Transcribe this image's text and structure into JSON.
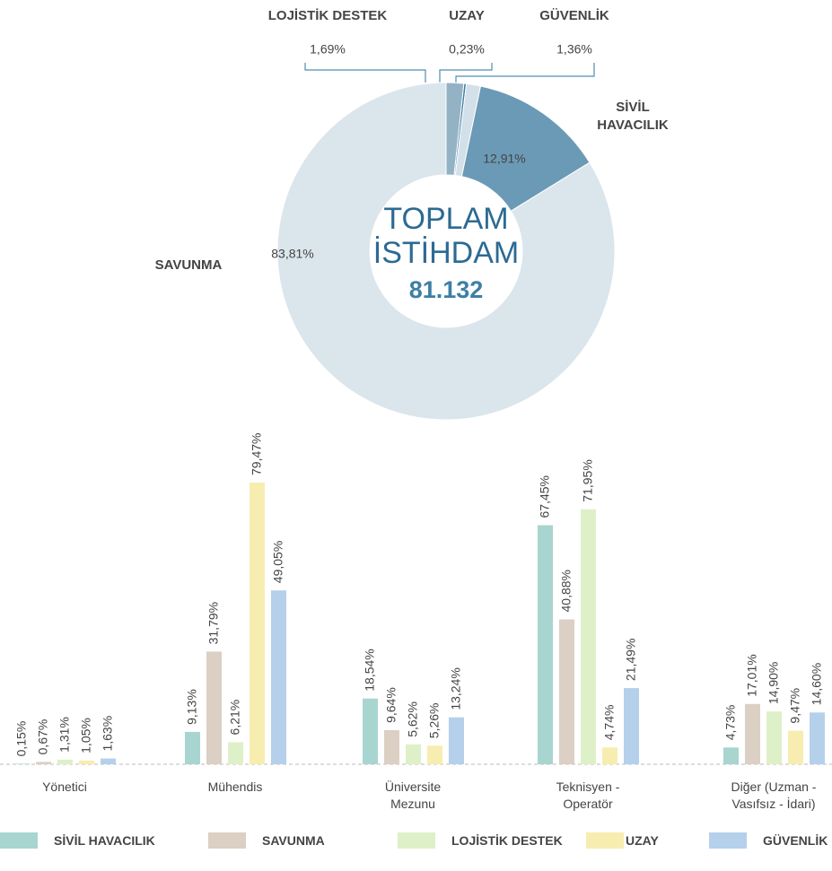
{
  "chart_data": [
    {
      "type": "donut",
      "center_title": [
        "TOPLAM",
        "İSTİHDAM"
      ],
      "center_value": "81.132",
      "categories": [
        "LOJİSTİK DESTEK",
        "UZAY",
        "GÜVENLİK",
        "SİVİL HAVACILIK",
        "SAVUNMA"
      ],
      "values": [
        1.69,
        0.23,
        1.36,
        12.91,
        83.81
      ],
      "value_labels": [
        "1,69%",
        "0,23%",
        "1,36%",
        "12,91%",
        "83,81%"
      ],
      "colors": [
        "#93b3c5",
        "#3d7ea3",
        "#d3e0e9",
        "#6b9ab6",
        "#dbe5ec"
      ]
    },
    {
      "type": "bar",
      "categories": [
        "Yönetici",
        "Mühendis",
        "Üniversite Mezunu",
        "Teknisyen - Operatör",
        "Diğer (Uzman - Vasıfsız - İdari)"
      ],
      "series": [
        {
          "name": "SİVİL HAVACILIK",
          "color": "#a8d5cf",
          "values": [
            0.15,
            9.13,
            18.54,
            67.45,
            4.73
          ],
          "value_labels": [
            "0,15%",
            "9,13%",
            "18,54%",
            "67,45%",
            "4,73%"
          ]
        },
        {
          "name": "SAVUNMA",
          "color": "#dccfc4",
          "values": [
            0.67,
            31.79,
            9.64,
            40.88,
            17.01
          ],
          "value_labels": [
            "0,67%",
            "31,79%",
            "9,64%",
            "40,88%",
            "17,01%"
          ]
        },
        {
          "name": "LOJİSTİK DESTEK",
          "color": "#def0c8",
          "values": [
            1.31,
            6.21,
            5.62,
            71.95,
            14.9
          ],
          "value_labels": [
            "1,31%",
            "6,21%",
            "5,62%",
            "71,95%",
            "14,90%"
          ]
        },
        {
          "name": "UZAY",
          "color": "#f8edb0",
          "values": [
            1.05,
            79.47,
            5.26,
            4.74,
            9.47
          ],
          "value_labels": [
            "1,05%",
            "79,47%",
            "5,26%",
            "4,74%",
            "9,47%"
          ]
        },
        {
          "name": "GÜVENLİK",
          "color": "#b5d0ea",
          "values": [
            1.63,
            49.05,
            13.24,
            21.49,
            14.6
          ],
          "value_labels": [
            "1,63%",
            "49,05%",
            "13,24%",
            "21,49%",
            "14,60%"
          ]
        }
      ]
    }
  ]
}
